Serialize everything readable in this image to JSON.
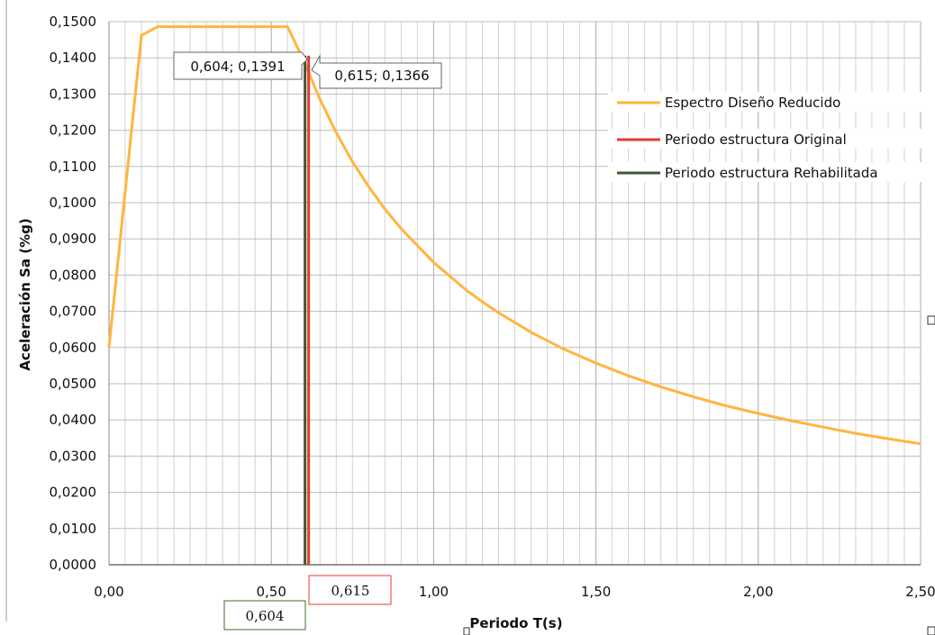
{
  "chart_data": {
    "type": "line",
    "xlabel": "Periodo T(s)",
    "ylabel": "Aceleración Sa (%g)",
    "xlim": [
      0,
      2.5
    ],
    "ylim": [
      0,
      0.15
    ],
    "x_ticks": [
      "0,00",
      "0,50",
      "1,00",
      "1,50",
      "2,00",
      "2,50"
    ],
    "y_ticks": [
      "0,0000",
      "0,0100",
      "0,0200",
      "0,0300",
      "0,0400",
      "0,0500",
      "0,0600",
      "0,0700",
      "0,0800",
      "0,0900",
      "0,1000",
      "0,1100",
      "0,1200",
      "0,1300",
      "0,1400",
      "0,1500"
    ],
    "grid": true,
    "legend_position": "right",
    "series": [
      {
        "name": "Espectro Diseño Reducido",
        "color": "#FFB53F",
        "points": [
          [
            0.0,
            0.06
          ],
          [
            0.1,
            0.1462
          ],
          [
            0.15,
            0.1486
          ],
          [
            0.2,
            0.1486
          ],
          [
            0.3,
            0.1486
          ],
          [
            0.4,
            0.1486
          ],
          [
            0.5,
            0.1486
          ],
          [
            0.55,
            0.1486
          ],
          [
            0.6,
            0.1392
          ],
          [
            0.65,
            0.1285
          ],
          [
            0.7,
            0.1193
          ],
          [
            0.75,
            0.1113
          ],
          [
            0.8,
            0.1044
          ],
          [
            0.85,
            0.0982
          ],
          [
            0.9,
            0.0928
          ],
          [
            1.0,
            0.0835
          ],
          [
            1.1,
            0.0759
          ],
          [
            1.15,
            0.0726
          ],
          [
            1.2,
            0.0696
          ],
          [
            1.3,
            0.0642
          ],
          [
            1.4,
            0.0596
          ],
          [
            1.5,
            0.0557
          ],
          [
            1.6,
            0.0522
          ],
          [
            1.7,
            0.0491
          ],
          [
            1.8,
            0.0464
          ],
          [
            1.9,
            0.0439
          ],
          [
            2.0,
            0.0418
          ],
          [
            2.1,
            0.0398
          ],
          [
            2.2,
            0.038
          ],
          [
            2.3,
            0.0363
          ],
          [
            2.4,
            0.0348
          ],
          [
            2.5,
            0.0334
          ]
        ]
      },
      {
        "name": "Periodo estructura Original",
        "color": "#E8392F",
        "x": 0.615
      },
      {
        "name": "Periodo estructura Rehabilitada",
        "color": "#3D5A32",
        "x": 0.604
      }
    ],
    "annotations": [
      {
        "label": "0,604; 0,1391",
        "x": 0.604,
        "y": 0.1391
      },
      {
        "label": "0,615; 0,1366",
        "x": 0.615,
        "y": 0.1366
      }
    ],
    "axis_marks": [
      {
        "label": "0,615",
        "x": 0.615,
        "color": "#E8392F"
      },
      {
        "label": "0,604",
        "x": 0.604,
        "color": "#3D6B2E"
      }
    ]
  }
}
